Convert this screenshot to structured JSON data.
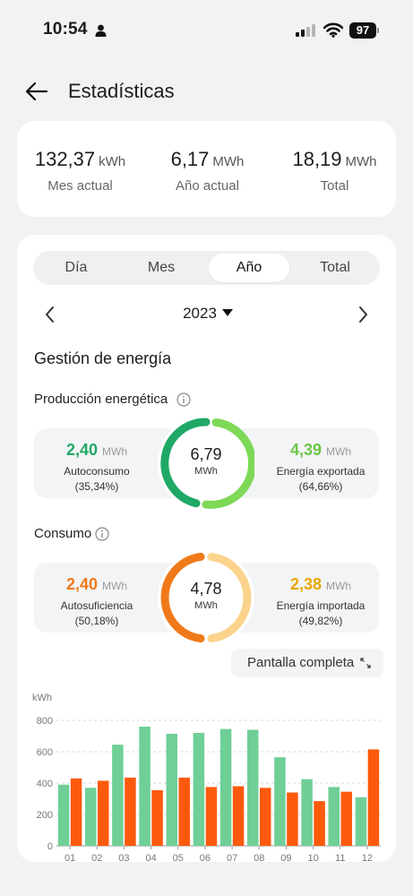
{
  "status_bar": {
    "time": "10:54",
    "battery": "97"
  },
  "header": {
    "title": "Estadísticas"
  },
  "summary": [
    {
      "value": "132,37",
      "unit": "kWh",
      "label": "Mes actual"
    },
    {
      "value": "6,17",
      "unit": "MWh",
      "label": "Año actual"
    },
    {
      "value": "18,19",
      "unit": "MWh",
      "label": "Total"
    }
  ],
  "tabs": [
    {
      "label": "Día",
      "active": false
    },
    {
      "label": "Mes",
      "active": false
    },
    {
      "label": "Año",
      "active": true
    },
    {
      "label": "Total",
      "active": false
    }
  ],
  "period": {
    "year": "2023"
  },
  "section_title": "Gestión de energía",
  "production": {
    "title": "Producción energética",
    "left": {
      "value": "2,40",
      "unit": "MWh",
      "label": "Autoconsumo",
      "pct": "(35,34%)",
      "color": "#1fa866"
    },
    "center": {
      "value": "6,79",
      "unit": "MWh"
    },
    "right": {
      "value": "4,39",
      "unit": "MWh",
      "label": "Energía exportada",
      "pct": "(64,66%)",
      "color": "#7ed957"
    }
  },
  "consumption": {
    "title": "Consumo",
    "left": {
      "value": "2,40",
      "unit": "MWh",
      "label": "Autosuficiencia",
      "pct": "(50,18%)",
      "color": "#f07a1a"
    },
    "center": {
      "value": "4,78",
      "unit": "MWh"
    },
    "right": {
      "value": "2,38",
      "unit": "MWh",
      "label": "Energía importada",
      "pct": "(49,82%)",
      "color": "#f3b400"
    }
  },
  "fullscreen_label": "Pantalla completa",
  "chart_data": {
    "type": "bar",
    "ylabel": "kWh",
    "ylim": [
      0,
      800
    ],
    "yticks": [
      0,
      200,
      400,
      600,
      800
    ],
    "categories": [
      "01",
      "02",
      "03",
      "04",
      "05",
      "06",
      "07",
      "08",
      "09",
      "10",
      "11",
      "12"
    ],
    "series": [
      {
        "color": "#6fcf97",
        "values": [
          390,
          370,
          645,
          760,
          715,
          720,
          745,
          740,
          565,
          425,
          375,
          310
        ]
      },
      {
        "color": "#fe5a0d",
        "values": [
          430,
          415,
          435,
          355,
          435,
          375,
          380,
          370,
          340,
          285,
          345,
          615
        ]
      }
    ],
    "grid": true
  }
}
